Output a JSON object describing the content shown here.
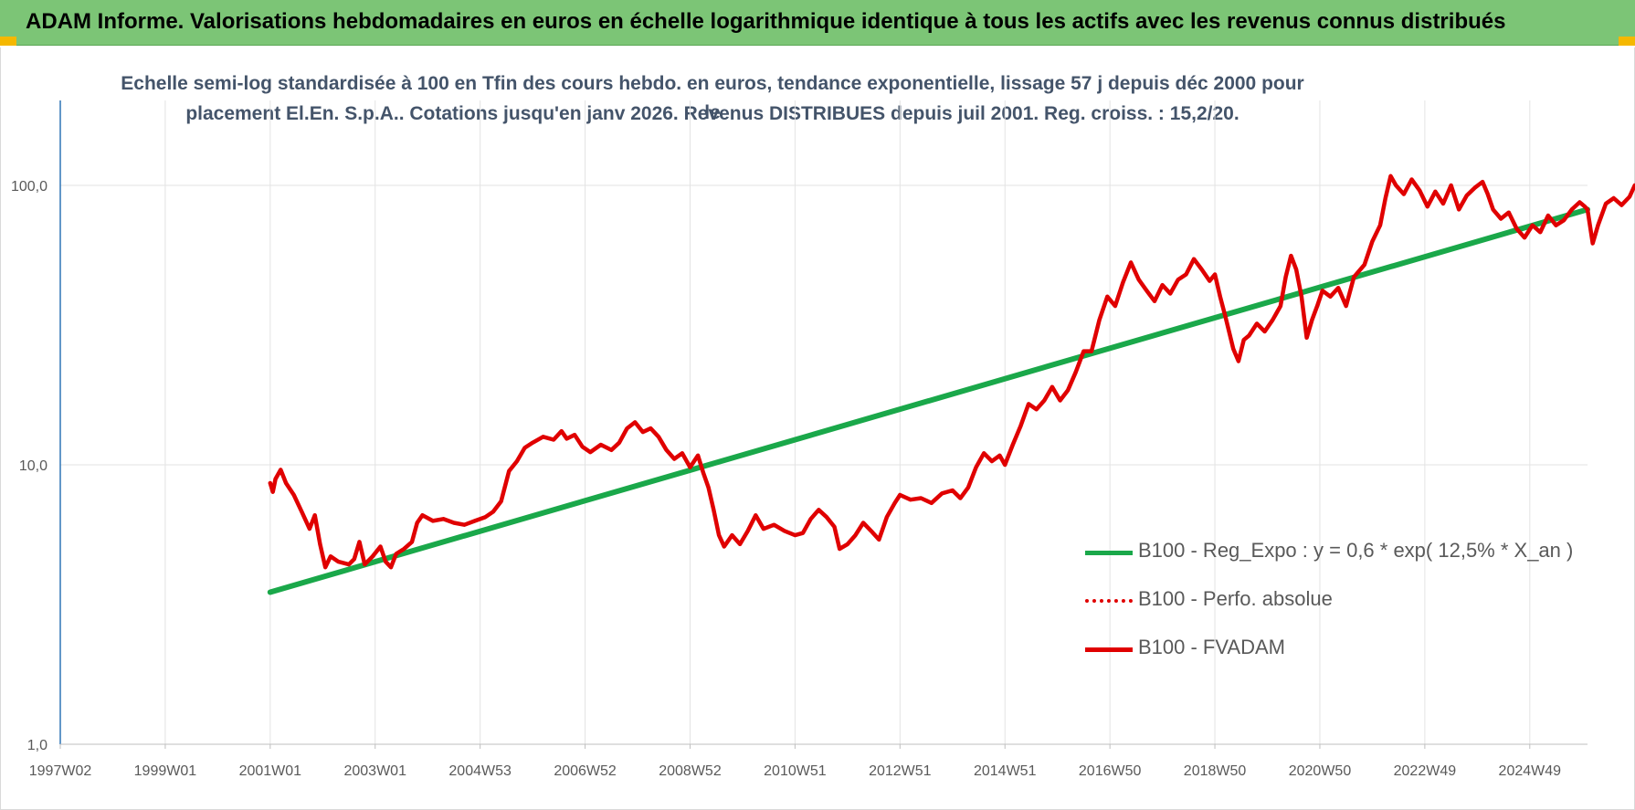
{
  "header": {
    "title": "ADAM Informe. Valorisations hebdomadaires en euros en échelle logarithmique identique à tous les actifs avec les revenus connus distribués",
    "banner_color": "#7cc576",
    "corner_color": "#f5b800"
  },
  "chart_data": {
    "type": "line",
    "title_line1": "Echelle semi-log standardisée à 100 en Tfin des cours hebdo. en euros, tendance exponentielle, lissage 57 j depuis déc 2000 pour le",
    "title_line2": "placement El.En. S.p.A.. Cotations jusqu'en janv 2026. Revenus DISTRIBUES depuis juil 2001. Reg. croiss. : 15,2/20.",
    "y_scale": "log",
    "ylim": [
      1,
      180
    ],
    "xlim": [
      1997.0,
      2026.1
    ],
    "y_ticks": [
      {
        "value": 1,
        "label": "1,0"
      },
      {
        "value": 10,
        "label": "10,0"
      },
      {
        "value": 100,
        "label": "100,0"
      }
    ],
    "x_ticks": [
      {
        "value": 1997.0,
        "label": "1997W02"
      },
      {
        "value": 1999.0,
        "label": "1999W01"
      },
      {
        "value": 2001.0,
        "label": "2001W01"
      },
      {
        "value": 2003.0,
        "label": "2003W01"
      },
      {
        "value": 2005.0,
        "label": "2004W53"
      },
      {
        "value": 2007.0,
        "label": "2006W52"
      },
      {
        "value": 2009.0,
        "label": "2008W52"
      },
      {
        "value": 2011.0,
        "label": "2010W51"
      },
      {
        "value": 2013.0,
        "label": "2012W51"
      },
      {
        "value": 2015.0,
        "label": "2014W51"
      },
      {
        "value": 2017.0,
        "label": "2016W50"
      },
      {
        "value": 2019.0,
        "label": "2018W50"
      },
      {
        "value": 2021.0,
        "label": "2020W50"
      },
      {
        "value": 2023.0,
        "label": "2022W49"
      },
      {
        "value": 2025.0,
        "label": "2024W49"
      }
    ],
    "grid": "vertical",
    "legend_position": "bottom-right",
    "series": [
      {
        "name": "B100 - Reg_Expo : y = 0,6 * exp( 12,5% *  X_an )",
        "color": "#1aa84a",
        "style": "solid",
        "points": [
          [
            2001.0,
            3.5
          ],
          [
            2026.1,
            82
          ]
        ]
      },
      {
        "name": "B100 - Perfo. absolue",
        "color": "#e00000",
        "style": "dotted",
        "points": []
      },
      {
        "name": "B100 - FVADAM",
        "color": "#e00000",
        "style": "solid",
        "points": [
          [
            2001.0,
            8.6
          ],
          [
            2001.05,
            8.0
          ],
          [
            2001.1,
            8.9
          ],
          [
            2001.2,
            9.6
          ],
          [
            2001.3,
            8.6
          ],
          [
            2001.45,
            7.8
          ],
          [
            2001.6,
            6.8
          ],
          [
            2001.75,
            5.9
          ],
          [
            2001.85,
            6.6
          ],
          [
            2001.95,
            5.2
          ],
          [
            2002.05,
            4.3
          ],
          [
            2002.15,
            4.7
          ],
          [
            2002.3,
            4.5
          ],
          [
            2002.5,
            4.4
          ],
          [
            2002.6,
            4.6
          ],
          [
            2002.7,
            5.3
          ],
          [
            2002.8,
            4.4
          ],
          [
            2002.95,
            4.7
          ],
          [
            2003.1,
            5.1
          ],
          [
            2003.2,
            4.5
          ],
          [
            2003.3,
            4.3
          ],
          [
            2003.4,
            4.8
          ],
          [
            2003.55,
            5.0
          ],
          [
            2003.7,
            5.3
          ],
          [
            2003.8,
            6.2
          ],
          [
            2003.9,
            6.6
          ],
          [
            2004.1,
            6.3
          ],
          [
            2004.3,
            6.4
          ],
          [
            2004.5,
            6.2
          ],
          [
            2004.7,
            6.1
          ],
          [
            2004.9,
            6.3
          ],
          [
            2005.1,
            6.5
          ],
          [
            2005.25,
            6.8
          ],
          [
            2005.4,
            7.4
          ],
          [
            2005.55,
            9.5
          ],
          [
            2005.7,
            10.3
          ],
          [
            2005.85,
            11.5
          ],
          [
            2006.0,
            12.0
          ],
          [
            2006.2,
            12.6
          ],
          [
            2006.4,
            12.3
          ],
          [
            2006.55,
            13.2
          ],
          [
            2006.65,
            12.4
          ],
          [
            2006.8,
            12.8
          ],
          [
            2006.95,
            11.6
          ],
          [
            2007.1,
            11.1
          ],
          [
            2007.3,
            11.8
          ],
          [
            2007.5,
            11.3
          ],
          [
            2007.65,
            12.0
          ],
          [
            2007.8,
            13.5
          ],
          [
            2007.95,
            14.2
          ],
          [
            2008.1,
            13.1
          ],
          [
            2008.25,
            13.5
          ],
          [
            2008.4,
            12.6
          ],
          [
            2008.55,
            11.3
          ],
          [
            2008.7,
            10.5
          ],
          [
            2008.85,
            11.0
          ],
          [
            2009.0,
            9.8
          ],
          [
            2009.15,
            10.8
          ],
          [
            2009.25,
            9.4
          ],
          [
            2009.35,
            8.3
          ],
          [
            2009.45,
            6.9
          ],
          [
            2009.55,
            5.6
          ],
          [
            2009.65,
            5.1
          ],
          [
            2009.8,
            5.6
          ],
          [
            2009.95,
            5.2
          ],
          [
            2010.1,
            5.8
          ],
          [
            2010.25,
            6.6
          ],
          [
            2010.4,
            5.9
          ],
          [
            2010.6,
            6.1
          ],
          [
            2010.8,
            5.8
          ],
          [
            2011.0,
            5.6
          ],
          [
            2011.15,
            5.7
          ],
          [
            2011.3,
            6.4
          ],
          [
            2011.45,
            6.9
          ],
          [
            2011.6,
            6.5
          ],
          [
            2011.75,
            6.0
          ],
          [
            2011.85,
            5.0
          ],
          [
            2012.0,
            5.2
          ],
          [
            2012.15,
            5.6
          ],
          [
            2012.3,
            6.2
          ],
          [
            2012.45,
            5.8
          ],
          [
            2012.6,
            5.4
          ],
          [
            2012.75,
            6.5
          ],
          [
            2012.9,
            7.3
          ],
          [
            2013.0,
            7.8
          ],
          [
            2013.2,
            7.5
          ],
          [
            2013.4,
            7.6
          ],
          [
            2013.6,
            7.3
          ],
          [
            2013.8,
            7.9
          ],
          [
            2014.0,
            8.1
          ],
          [
            2014.15,
            7.6
          ],
          [
            2014.3,
            8.3
          ],
          [
            2014.45,
            9.8
          ],
          [
            2014.6,
            11.0
          ],
          [
            2014.75,
            10.3
          ],
          [
            2014.9,
            10.8
          ],
          [
            2015.0,
            10.0
          ],
          [
            2015.15,
            11.8
          ],
          [
            2015.3,
            13.8
          ],
          [
            2015.45,
            16.5
          ],
          [
            2015.6,
            15.8
          ],
          [
            2015.75,
            17.0
          ],
          [
            2015.9,
            19.0
          ],
          [
            2016.05,
            17.0
          ],
          [
            2016.2,
            18.5
          ],
          [
            2016.35,
            21.5
          ],
          [
            2016.5,
            25.5
          ],
          [
            2016.65,
            25.5
          ],
          [
            2016.8,
            33.0
          ],
          [
            2016.95,
            40.0
          ],
          [
            2017.1,
            37.0
          ],
          [
            2017.25,
            45.0
          ],
          [
            2017.4,
            53.0
          ],
          [
            2017.55,
            46.0
          ],
          [
            2017.7,
            42.0
          ],
          [
            2017.85,
            38.5
          ],
          [
            2018.0,
            44.0
          ],
          [
            2018.15,
            41.0
          ],
          [
            2018.3,
            46.0
          ],
          [
            2018.45,
            48.0
          ],
          [
            2018.6,
            54.5
          ],
          [
            2018.75,
            50.0
          ],
          [
            2018.9,
            45.5
          ],
          [
            2019.0,
            48.0
          ],
          [
            2019.1,
            40.0
          ],
          [
            2019.2,
            34.0
          ],
          [
            2019.35,
            26.0
          ],
          [
            2019.45,
            23.5
          ],
          [
            2019.55,
            28.0
          ],
          [
            2019.65,
            29.0
          ],
          [
            2019.8,
            32.0
          ],
          [
            2019.95,
            30.0
          ],
          [
            2020.1,
            33.0
          ],
          [
            2020.25,
            37.0
          ],
          [
            2020.35,
            47.0
          ],
          [
            2020.45,
            56.0
          ],
          [
            2020.55,
            50.0
          ],
          [
            2020.65,
            40.0
          ],
          [
            2020.75,
            28.5
          ],
          [
            2020.85,
            33.0
          ],
          [
            2020.95,
            37.0
          ],
          [
            2021.05,
            42.0
          ],
          [
            2021.2,
            40.0
          ],
          [
            2021.35,
            43.0
          ],
          [
            2021.5,
            37.0
          ],
          [
            2021.65,
            47.0
          ],
          [
            2021.85,
            52.0
          ],
          [
            2022.0,
            63.0
          ],
          [
            2022.15,
            72.0
          ],
          [
            2022.25,
            90.0
          ],
          [
            2022.35,
            108.0
          ],
          [
            2022.45,
            100.0
          ],
          [
            2022.6,
            93.0
          ],
          [
            2022.75,
            105.0
          ],
          [
            2022.9,
            96.0
          ],
          [
            2023.05,
            84.0
          ],
          [
            2023.2,
            95.0
          ],
          [
            2023.35,
            86.0
          ],
          [
            2023.5,
            100.0
          ],
          [
            2023.65,
            82.0
          ],
          [
            2023.8,
            92.0
          ],
          [
            2023.95,
            98.0
          ],
          [
            2024.1,
            103.0
          ],
          [
            2024.2,
            93.0
          ],
          [
            2024.3,
            82.0
          ],
          [
            2024.45,
            76.0
          ],
          [
            2024.6,
            80.0
          ],
          [
            2024.75,
            70.0
          ],
          [
            2024.9,
            65.0
          ],
          [
            2025.05,
            72.0
          ],
          [
            2025.2,
            68.0
          ],
          [
            2025.35,
            78.0
          ],
          [
            2025.5,
            72.0
          ],
          [
            2025.65,
            75.0
          ],
          [
            2025.8,
            82.0
          ],
          [
            2025.95,
            87.0
          ],
          [
            2026.05,
            84.0
          ],
          [
            2026.1,
            82.0
          ],
          [
            2026.2,
            62.0
          ],
          [
            2026.3,
            72.0
          ],
          [
            2026.45,
            86.0
          ],
          [
            2026.6,
            90.0
          ],
          [
            2026.75,
            85.0
          ],
          [
            2026.9,
            91.0
          ],
          [
            2027.0,
            100.0
          ]
        ]
      }
    ]
  }
}
